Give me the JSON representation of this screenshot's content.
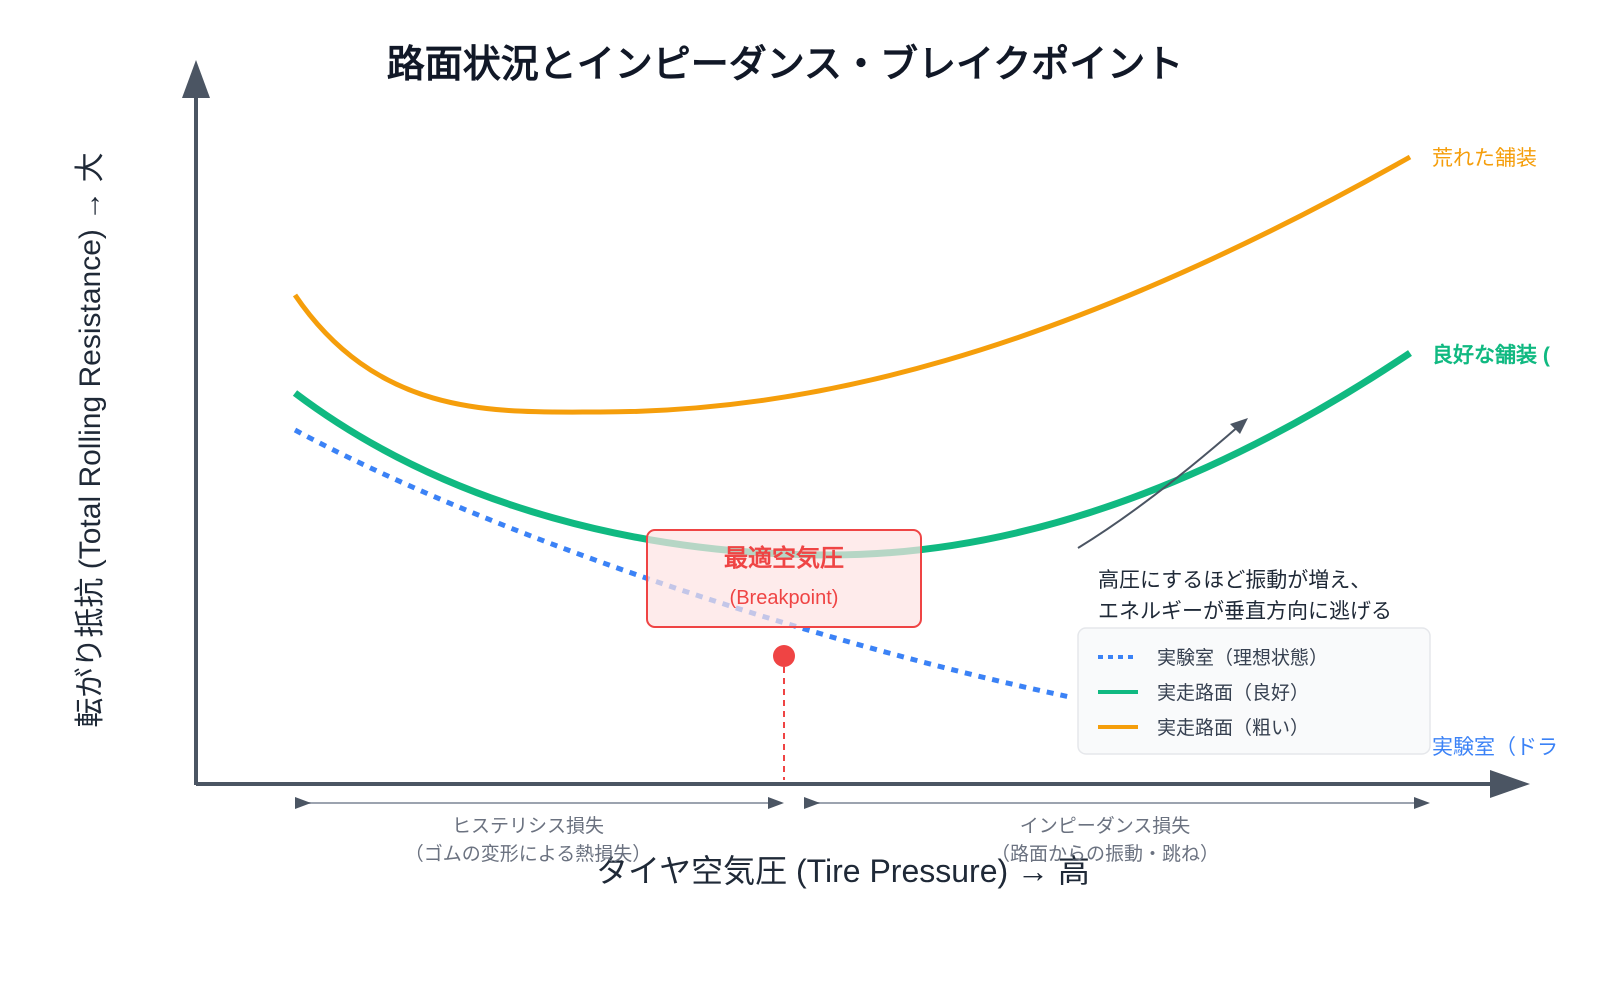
{
  "title": "路面状況とインピーダンス・ブレイクポイント",
  "axes": {
    "y_label": "転がり抵抗 (Total Rolling Resistance) → 大",
    "x_label": "タイヤ空気圧 (Tire Pressure) → 高"
  },
  "curves": {
    "rough": {
      "label": "荒れた舗装",
      "color": "#f59e0b"
    },
    "good": {
      "label": "良好な舗装 (",
      "color": "#10b981"
    },
    "lab": {
      "label": "実験室（ドラ",
      "color": "#3b82f6"
    }
  },
  "breakpoint": {
    "title": "最適空気圧",
    "subtitle": "(Breakpoint)",
    "color": "#ef4444"
  },
  "annotation": {
    "line1": "高圧にするほど振動が増え、",
    "line2": "エネルギーが垂直方向に逃げる"
  },
  "legend": {
    "items": [
      {
        "label": "実験室（理想状態）",
        "style": "dotted",
        "color": "#3b82f6"
      },
      {
        "label": "実走路面（良好）",
        "style": "solid",
        "color": "#10b981"
      },
      {
        "label": "実走路面（粗い）",
        "style": "solid",
        "color": "#f59e0b"
      }
    ]
  },
  "regions": {
    "left": {
      "line1": "ヒステリシス損失",
      "line2": "（ゴムの変形による熱損失）"
    },
    "right": {
      "line1": "インピーダンス損失",
      "line2": "（路面からの振動・跳ね）"
    }
  }
}
